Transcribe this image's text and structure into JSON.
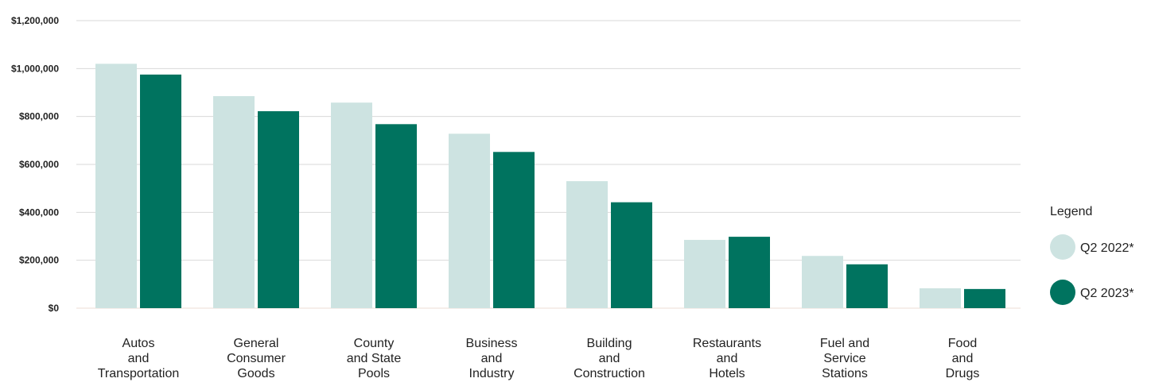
{
  "chart_data": {
    "type": "bar",
    "categories": [
      [
        "Autos",
        "and",
        "Transportation"
      ],
      [
        "General",
        "Consumer",
        "Goods"
      ],
      [
        "County",
        "and State",
        "Pools"
      ],
      [
        "Business",
        "and",
        "Industry"
      ],
      [
        "Building",
        "and",
        "Construction"
      ],
      [
        "Restaurants",
        "and",
        "Hotels"
      ],
      [
        "Fuel and",
        "Service",
        "Stations"
      ],
      [
        "Food",
        "and",
        "Drugs"
      ]
    ],
    "series": [
      {
        "name": "Q2 2022*",
        "color": "#cde3e1",
        "values": [
          1020000,
          885000,
          858000,
          728000,
          530000,
          285000,
          218000,
          83000
        ]
      },
      {
        "name": "Q2 2023*",
        "color": "#00735f",
        "values": [
          975000,
          822000,
          768000,
          652000,
          442000,
          298000,
          183000,
          80000
        ]
      }
    ],
    "yticks": [
      0,
      200000,
      400000,
      600000,
      800000,
      1000000,
      1200000
    ],
    "ytick_labels": [
      "$0",
      "$200,000",
      "$400,000",
      "$600,000",
      "$800,000",
      "$1,000,000",
      "$1,200,000"
    ],
    "ylim": [
      0,
      1200000
    ],
    "grid": true,
    "legend": {
      "title": "Legend",
      "position": "right"
    }
  }
}
